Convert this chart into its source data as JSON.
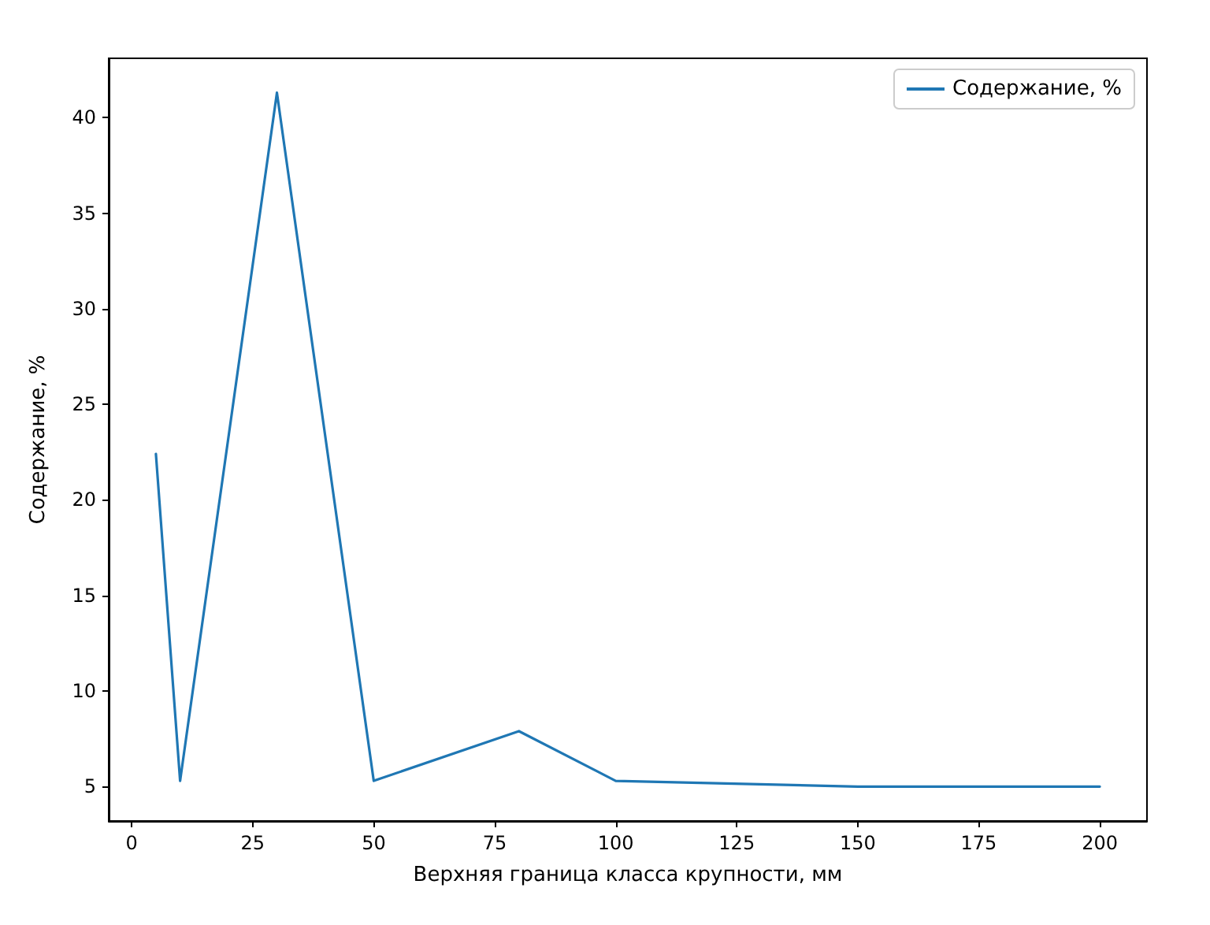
{
  "chart_data": {
    "type": "line",
    "xlabel": "Верхняя граница класса крупности, мм",
    "ylabel": "Содержание, %",
    "x": [
      5,
      10,
      30,
      50,
      80,
      100,
      150,
      200
    ],
    "series": [
      {
        "name": "Содержание, %",
        "color": "#1f77b4",
        "values": [
          22.4,
          5.3,
          41.3,
          5.3,
          7.9,
          5.3,
          5.0,
          5.0
        ]
      }
    ],
    "xlim": [
      -4.75,
      209.75
    ],
    "xticks": [
      0,
      25,
      50,
      75,
      100,
      125,
      150,
      175,
      200
    ],
    "ylim": [
      3.2,
      43.1
    ],
    "yticks": [
      5,
      10,
      15,
      20,
      25,
      30,
      35,
      40
    ],
    "legend": "top right",
    "grid": false,
    "marker": "none",
    "line_style": "solid"
  }
}
